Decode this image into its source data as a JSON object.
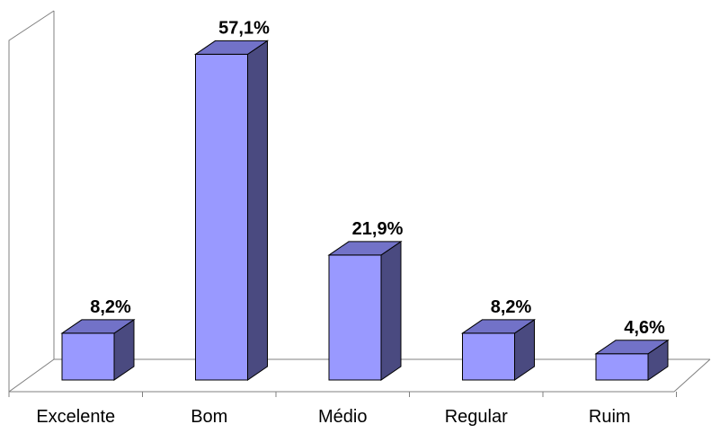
{
  "chart_data": {
    "type": "bar",
    "style": "3d-column",
    "categories": [
      "Excelente",
      "Bom",
      "Médio",
      "Regular",
      "Ruim"
    ],
    "values": [
      8.2,
      57.1,
      21.9,
      8.2,
      4.6
    ],
    "data_labels": [
      "8,2%",
      "57,1%",
      "21,9%",
      "8,2%",
      "4,6%"
    ],
    "unit": "%",
    "ylim": [
      0,
      60
    ],
    "grid": false,
    "legend": "none",
    "colors": {
      "bar_front": "#9999ff",
      "bar_side": "#4a4a80",
      "bar_top": "#7272c8",
      "bar_outline": "#000000",
      "axis_wall": "#808080"
    }
  }
}
